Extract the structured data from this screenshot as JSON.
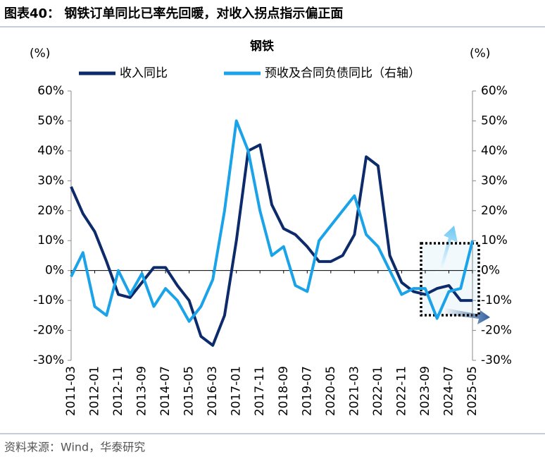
{
  "header": {
    "title": "图表40：  钢铁订单同比已率先回暖，对收入拐点指示偏正面"
  },
  "chart_data": {
    "type": "line",
    "title": "钢铁",
    "ylabel": "(%)",
    "y2label": "(%)",
    "categories": [
      "2011-03",
      null,
      "2012-01",
      null,
      "2012-11",
      null,
      "2013-09",
      null,
      "2014-07",
      null,
      "2015-05",
      null,
      "2016-03",
      null,
      "2017-01",
      null,
      "2017-11",
      null,
      "2018-09",
      null,
      "2019-07",
      null,
      "2020-05",
      null,
      "2021-03",
      null,
      "2022-01",
      null,
      "2022-11",
      null,
      "2023-09",
      null,
      "2024-07",
      null,
      "2025-05"
    ],
    "series": [
      {
        "name": "收入同比",
        "color": "#0d2b6b",
        "axis": "y",
        "values": [
          28,
          19,
          13,
          3,
          -8,
          -9,
          -4,
          1,
          1,
          -5,
          -10,
          -22,
          -25,
          -15,
          10,
          40,
          42,
          22,
          14,
          12,
          8,
          3,
          3,
          5,
          12,
          38,
          35,
          5,
          -4,
          -7,
          -8,
          -6,
          -5,
          -10,
          -10
        ]
      },
      {
        "name": "预收及合同负债同比（右轴）",
        "color": "#1aa3e8",
        "axis": "y2",
        "values": [
          -2,
          6,
          -12,
          -15,
          0,
          -8,
          -1,
          -12,
          -6,
          -10,
          -17,
          -12,
          -3,
          20,
          50,
          40,
          20,
          5,
          8,
          -5,
          -7,
          10,
          15,
          20,
          25,
          12,
          8,
          0,
          -8,
          -6,
          -6,
          -16,
          -7,
          -6,
          10
        ]
      }
    ],
    "ylim": [
      -30,
      60
    ],
    "yticks": [
      {
        "value": -30,
        "label": "-30%"
      },
      {
        "value": -20,
        "label": "-20%"
      },
      {
        "value": -10,
        "label": "-10%"
      },
      {
        "value": 0,
        "label": "0%"
      },
      {
        "value": 10,
        "label": "10%"
      },
      {
        "value": 20,
        "label": "20%"
      },
      {
        "value": 30,
        "label": "30%"
      },
      {
        "value": 40,
        "label": "40%"
      },
      {
        "value": 50,
        "label": "50%"
      },
      {
        "value": 60,
        "label": "60%"
      }
    ],
    "y2lim": [
      -30,
      60
    ],
    "y2ticks": [
      {
        "value": -30,
        "label": "-30%"
      },
      {
        "value": -20,
        "label": "-20%"
      },
      {
        "value": -10,
        "label": "-10%"
      },
      {
        "value": 0,
        "label": "0%"
      },
      {
        "value": 10,
        "label": "10%"
      },
      {
        "value": 20,
        "label": "20%"
      },
      {
        "value": 30,
        "label": "30%"
      },
      {
        "value": 40,
        "label": "40%"
      },
      {
        "value": 50,
        "label": "50%"
      },
      {
        "value": 60,
        "label": "60%"
      }
    ]
  },
  "footer": {
    "source": "资料来源：Wind，华泰研究"
  }
}
